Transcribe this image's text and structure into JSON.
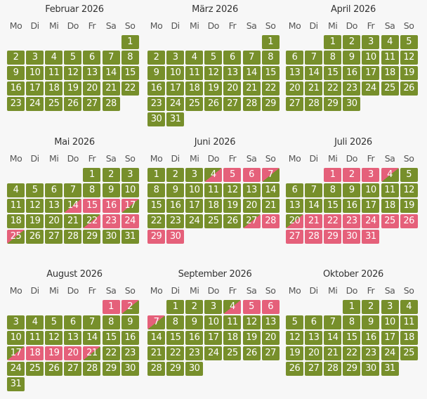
{
  "weekdays": [
    "Mo",
    "Di",
    "Mi",
    "Do",
    "Fr",
    "Sa",
    "So"
  ],
  "colors": {
    "free": "#778f2b",
    "booked": "#e5607a"
  },
  "months": [
    {
      "title": "Februar 2026",
      "year": 2026,
      "month": 2,
      "days": 28,
      "booked": [],
      "arrival": [],
      "departure": []
    },
    {
      "title": "März 2026",
      "year": 2026,
      "month": 3,
      "days": 31,
      "booked": [],
      "arrival": [],
      "departure": []
    },
    {
      "title": "April 2026",
      "year": 2026,
      "month": 4,
      "days": 30,
      "booked": [],
      "arrival": [],
      "departure": []
    },
    {
      "title": "Mai 2026",
      "year": 2026,
      "month": 5,
      "days": 31,
      "booked": [
        15,
        16,
        23,
        24
      ],
      "arrival": [
        14,
        22
      ],
      "departure": [
        17,
        25
      ]
    },
    {
      "title": "Juni 2026",
      "year": 2026,
      "month": 6,
      "days": 30,
      "booked": [
        5,
        6,
        28,
        29,
        30
      ],
      "arrival": [
        4,
        27
      ],
      "departure": [
        7
      ]
    },
    {
      "title": "Juli 2026",
      "year": 2026,
      "month": 7,
      "days": 31,
      "booked": [
        1,
        2,
        3,
        21,
        22,
        23,
        24,
        25,
        26,
        27,
        28,
        29,
        30,
        31
      ],
      "arrival": [
        20
      ],
      "departure": [
        4
      ]
    },
    {
      "title": "August 2026",
      "year": 2026,
      "month": 8,
      "days": 31,
      "booked": [
        1,
        18,
        19,
        20
      ],
      "arrival": [
        17
      ],
      "departure": [
        2,
        21
      ]
    },
    {
      "title": "September 2026",
      "year": 2026,
      "month": 9,
      "days": 30,
      "booked": [
        5,
        6
      ],
      "arrival": [
        4
      ],
      "departure": [
        7
      ]
    },
    {
      "title": "Oktober 2026",
      "year": 2026,
      "month": 10,
      "days": 31,
      "booked": [],
      "arrival": [],
      "departure": []
    }
  ]
}
